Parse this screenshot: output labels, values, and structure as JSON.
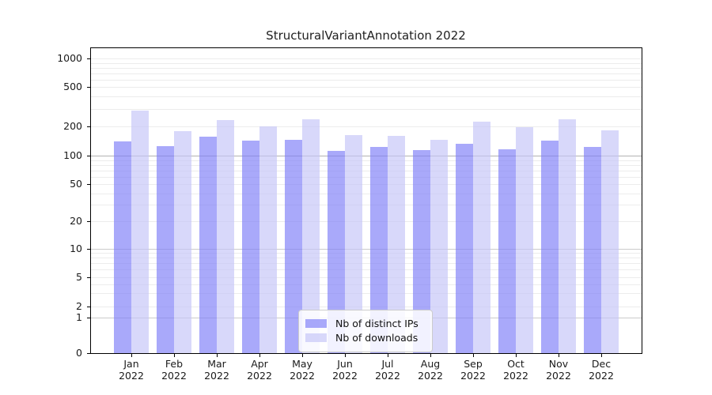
{
  "chart_data": {
    "type": "bar",
    "title": "StructuralVariantAnnotation 2022",
    "year": "2022",
    "categories": [
      "Jan",
      "Feb",
      "Mar",
      "Apr",
      "May",
      "Jun",
      "Jul",
      "Aug",
      "Sep",
      "Oct",
      "Nov",
      "Dec"
    ],
    "series": [
      {
        "name": "Nb of distinct IPs",
        "color": "rgba(124,124,247,0.66)",
        "values": [
          140,
          124,
          155,
          143,
          146,
          112,
          122,
          113,
          133,
          116,
          143,
          123
        ]
      },
      {
        "name": "Nb of downloads",
        "color": "rgba(196,196,248,0.66)",
        "values": [
          287,
          178,
          228,
          197,
          236,
          161,
          160,
          146,
          220,
          195,
          236,
          181
        ]
      }
    ],
    "y_ticks": [
      0,
      1,
      2,
      5,
      10,
      20,
      50,
      100,
      200,
      500,
      1000
    ],
    "y_scale": "log-like with compressed 0-1 segment",
    "xlabel": "",
    "ylabel": "",
    "grid": true,
    "legend_position": "lower center"
  }
}
